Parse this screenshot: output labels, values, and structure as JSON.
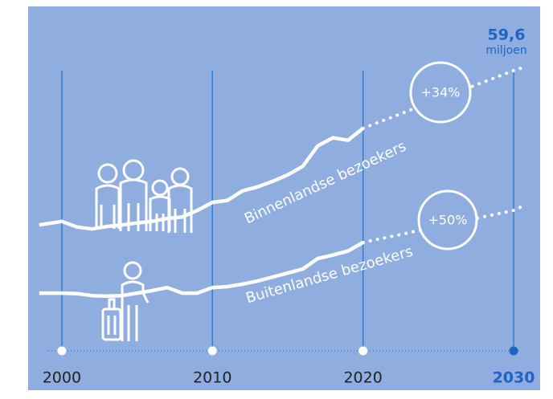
{
  "chart_data": {
    "type": "line",
    "x": [
      1998.5,
      2000,
      2001,
      2002,
      2003,
      2004,
      2005,
      2006,
      2007,
      2008,
      2009,
      2010,
      2011,
      2012,
      2013,
      2014,
      2015,
      2016,
      2017,
      2018,
      2019,
      2020,
      2030,
      2030.5
    ],
    "series": [
      {
        "name": "Binnenlandse bezoekers",
        "color": "#ffffff",
        "values": [
          28.8,
          29.5,
          28.4,
          28.0,
          28.5,
          28.8,
          29.2,
          29.5,
          30.1,
          30.4,
          31.7,
          33.3,
          33.7,
          35.6,
          36.4,
          37.5,
          38.8,
          40.5,
          44.6,
          46.2,
          45.7,
          48.1,
          null,
          null
        ],
        "forecast": [
          null,
          null,
          null,
          null,
          null,
          null,
          null,
          null,
          null,
          null,
          null,
          null,
          null,
          null,
          null,
          null,
          null,
          null,
          null,
          null,
          null,
          48.1,
          59.6,
          60.1
        ]
      },
      {
        "name": "Buitenlandse bezoekers",
        "color": "#ffffff",
        "values": [
          15.2,
          15.2,
          15.1,
          14.7,
          14.6,
          14.7,
          15.2,
          15.7,
          16.3,
          15.2,
          15.2,
          16.3,
          16.5,
          17.0,
          17.6,
          18.4,
          19.2,
          20.0,
          22.1,
          22.8,
          23.6,
          25.3,
          null,
          null
        ],
        "forecast": [
          null,
          null,
          null,
          null,
          null,
          null,
          null,
          null,
          null,
          null,
          null,
          null,
          null,
          null,
          null,
          null,
          null,
          null,
          null,
          null,
          null,
          25.3,
          31.7,
          32.4
        ]
      }
    ],
    "annotations": [
      "+34%",
      "+50%"
    ],
    "end_value": "59,6",
    "end_unit": "miljoen",
    "xlim": [
      1998.5,
      2030.5
    ],
    "xticks": [
      2000,
      2010,
      2020,
      2030
    ],
    "ylim": [
      0,
      72.4
    ],
    "grid": true,
    "background": "#8fadde",
    "accent_color": "#1f64c4",
    "grid_color": "#2f7fd6"
  }
}
